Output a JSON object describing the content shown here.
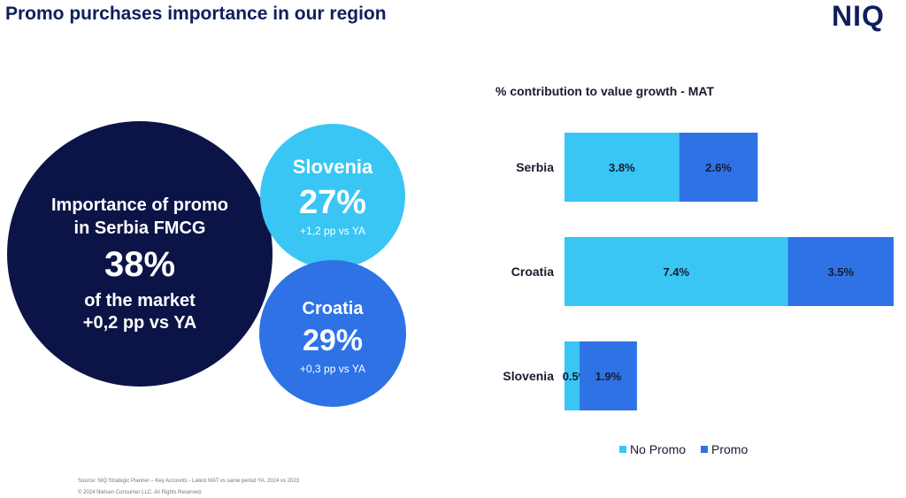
{
  "header": {
    "title": "Promo purchases importance in our region",
    "logo": "NIQ"
  },
  "bubbles": {
    "serbia": {
      "line1": "Importance of promo",
      "line2": "in Serbia FMCG",
      "value": "38%",
      "line3": "of the market",
      "line4": "+0,2 pp vs YA"
    },
    "slovenia": {
      "name": "Slovenia",
      "value": "27%",
      "delta": "+1,2 pp vs YA"
    },
    "croatia": {
      "name": "Croatia",
      "value": "29%",
      "delta": "+0,3 pp vs YA"
    }
  },
  "chart_data": {
    "type": "bar",
    "orientation": "horizontal",
    "stacked": true,
    "title": "% contribution to value growth - MAT",
    "categories": [
      "Serbia",
      "Croatia",
      "Slovenia"
    ],
    "series": [
      {
        "name": "No Promo",
        "values": [
          3.8,
          7.4,
          0.5
        ],
        "labels": [
          "3.8%",
          "7.4%",
          "0.5%"
        ],
        "color": "#39c6f4"
      },
      {
        "name": "Promo",
        "values": [
          2.6,
          3.5,
          1.9
        ],
        "labels": [
          "2.6%",
          "3.5%",
          "1.9%"
        ],
        "color": "#2e72e6"
      }
    ],
    "xlim": [
      0,
      10.9
    ],
    "legend_position": "bottom"
  },
  "footer": {
    "source": "Source: NIQ Strategic Planner – Key Accounts - Latest MAT vs same period YA, 2024 vs 2023",
    "copyright": "© 2024 Nielsen Consumer LLC. All Rights Reserved."
  }
}
